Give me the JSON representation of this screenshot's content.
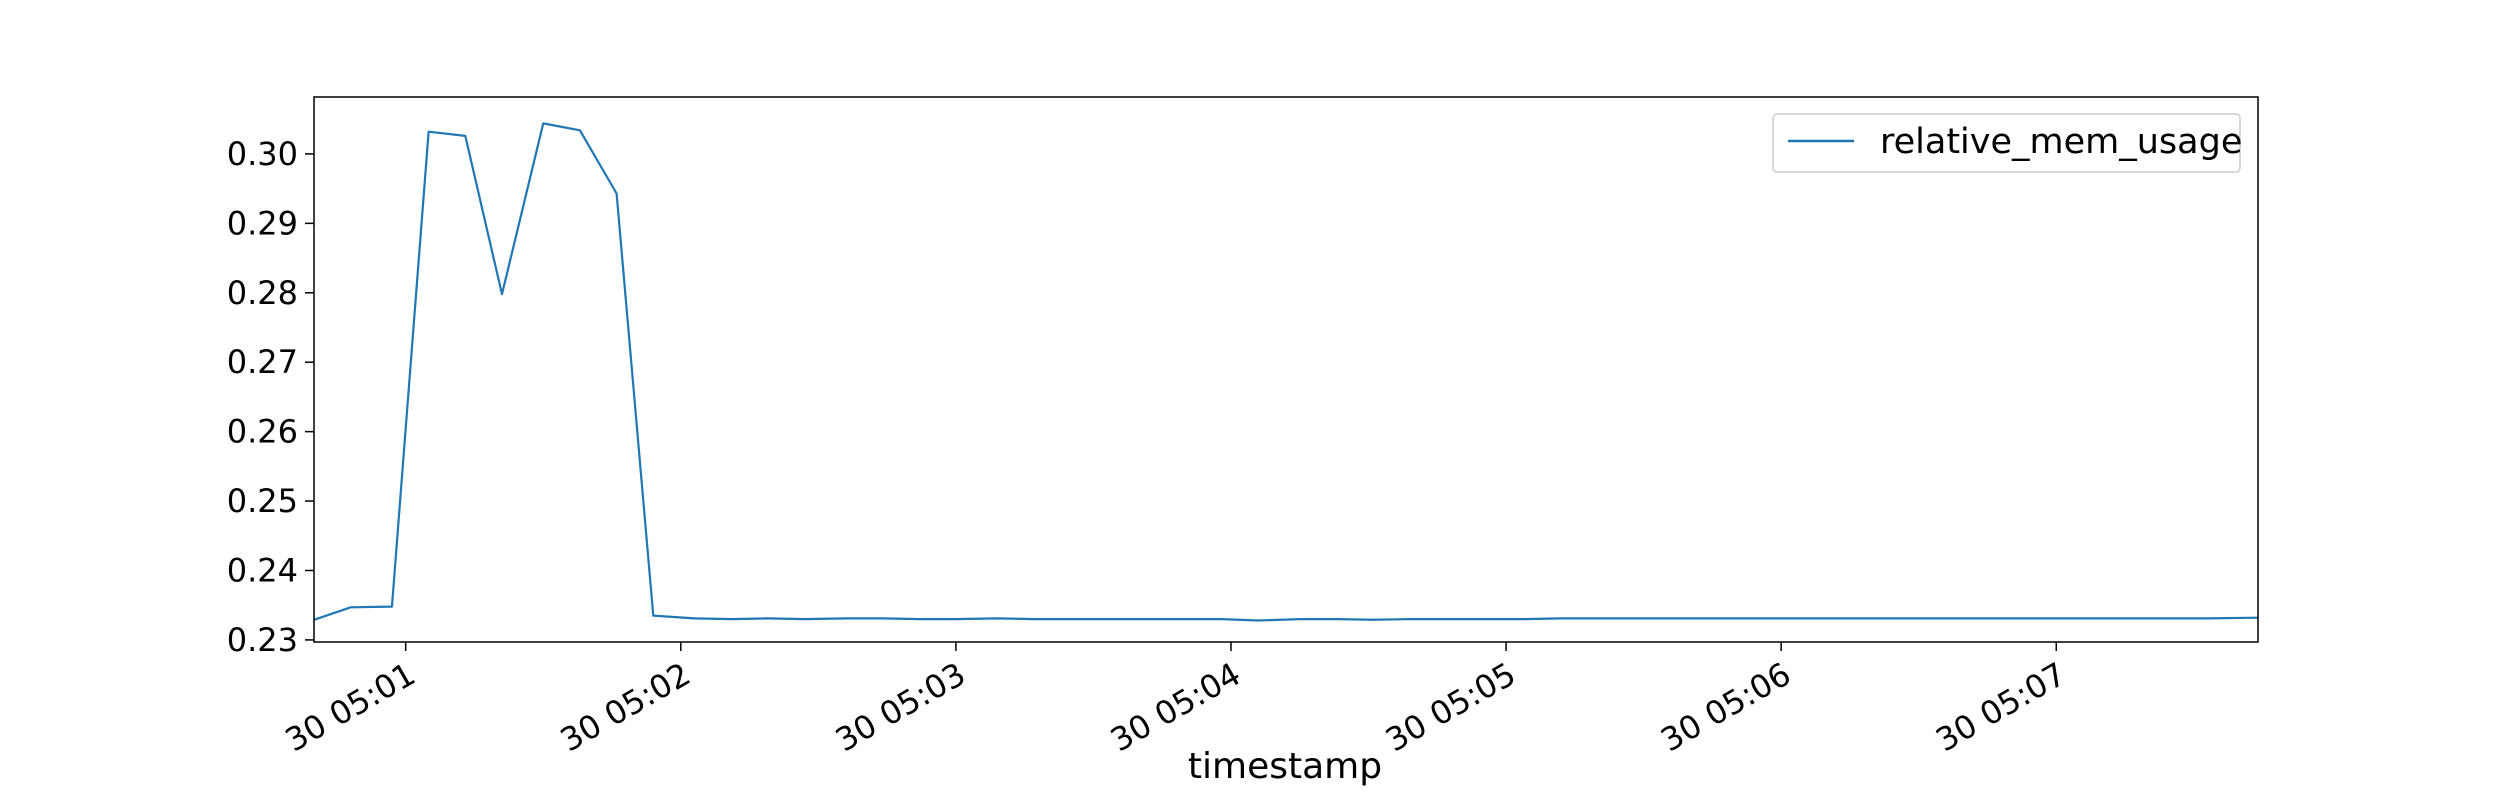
{
  "chart_data": {
    "type": "line",
    "title": "",
    "xlabel": "timestamp",
    "ylabel": "",
    "x_tick_labels": [
      "30 05:01",
      "30 05:02",
      "30 05:03",
      "30 05:04",
      "30 05:05",
      "30 05:06",
      "30 05:07"
    ],
    "y_tick_labels": [
      "0.23",
      "0.24",
      "0.25",
      "0.26",
      "0.27",
      "0.28",
      "0.29",
      "0.30"
    ],
    "x_ticks": [
      "05:01:00",
      "05:02:00",
      "05:03:00",
      "05:04:00",
      "05:05:00",
      "05:06:00",
      "05:07:00"
    ],
    "y_ticks": [
      0.23,
      0.24,
      0.25,
      0.26,
      0.27,
      0.28,
      0.29,
      0.3
    ],
    "xlim": [
      "05:00:40",
      "05:07:44"
    ],
    "ylim": [
      0.2297,
      0.3082
    ],
    "grid": false,
    "legend_position": "top-right",
    "series": [
      {
        "name": "relative_mem_usage",
        "color": "#1f77b4",
        "x": [
          "05:00:40",
          "05:00:48",
          "05:00:57",
          "05:01:05",
          "05:01:13",
          "05:01:21",
          "05:01:30",
          "05:01:38",
          "05:01:46",
          "05:01:54",
          "05:02:03",
          "05:02:11",
          "05:02:19",
          "05:02:27",
          "05:02:36",
          "05:02:44",
          "05:02:52",
          "05:03:00",
          "05:03:09",
          "05:03:17",
          "05:03:25",
          "05:03:33",
          "05:03:42",
          "05:03:50",
          "05:03:58",
          "05:04:06",
          "05:04:15",
          "05:04:23",
          "05:04:31",
          "05:04:39",
          "05:04:48",
          "05:04:56",
          "05:05:04",
          "05:05:12",
          "05:05:21",
          "05:05:29",
          "05:05:37",
          "05:05:45",
          "05:05:54",
          "05:06:02",
          "05:06:10",
          "05:06:18",
          "05:06:27",
          "05:06:35",
          "05:06:43",
          "05:06:51",
          "05:07:00",
          "05:07:08",
          "05:07:16",
          "05:07:24",
          "05:07:33",
          "05:07:44"
        ],
        "y": [
          0.2329,
          0.2347,
          0.2348,
          0.3032,
          0.3026,
          0.2798,
          0.3044,
          0.3034,
          0.2943,
          0.2335,
          0.2331,
          0.233,
          0.2331,
          0.233,
          0.2331,
          0.2331,
          0.233,
          0.233,
          0.2331,
          0.233,
          0.233,
          0.233,
          0.233,
          0.233,
          0.233,
          0.2328,
          0.233,
          0.233,
          0.2329,
          0.233,
          0.233,
          0.233,
          0.233,
          0.2331,
          0.2331,
          0.2331,
          0.2331,
          0.2331,
          0.2331,
          0.2331,
          0.2331,
          0.2331,
          0.2331,
          0.2331,
          0.2331,
          0.2331,
          0.2331,
          0.2331,
          0.2331,
          0.2331,
          0.2331,
          0.2332
        ]
      }
    ]
  }
}
